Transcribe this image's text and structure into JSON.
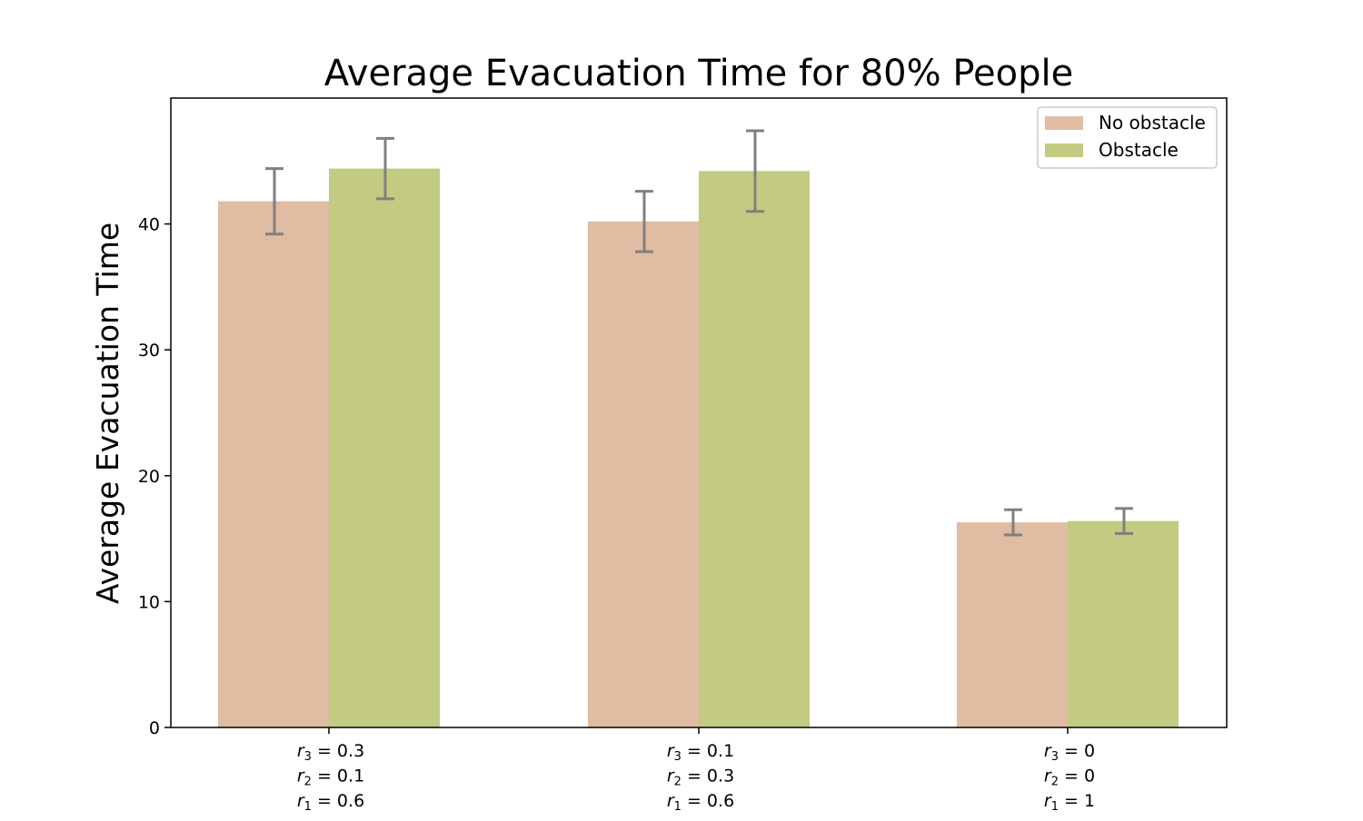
{
  "chart_data": {
    "type": "bar",
    "title": "Average Evacuation Time for 80% People",
    "xlabel": "",
    "ylabel": "Average Evacuation Time",
    "ylim": [
      0,
      50
    ],
    "yticks": [
      0,
      10,
      20,
      30,
      40
    ],
    "categories": [
      [
        "r_3 = 0.3",
        "r_2 = 0.1",
        "r_1 = 0.6"
      ],
      [
        "r_3 = 0.1",
        "r_2 = 0.3",
        "r_1 = 0.6"
      ],
      [
        "r_3 = 0",
        "r_2 = 0",
        "r_1 = 1"
      ]
    ],
    "series": [
      {
        "name": "No obstacle",
        "color": "#e0bca3",
        "values": [
          41.8,
          40.2,
          16.3
        ],
        "errors": [
          2.6,
          2.4,
          1.0
        ]
      },
      {
        "name": "Obstacle",
        "color": "#c3ca81",
        "values": [
          44.4,
          44.2,
          16.4
        ],
        "errors": [
          2.4,
          3.2,
          1.0
        ]
      }
    ],
    "error_bar_color": "#808080",
    "grid": false,
    "legend_position": "top-right"
  }
}
